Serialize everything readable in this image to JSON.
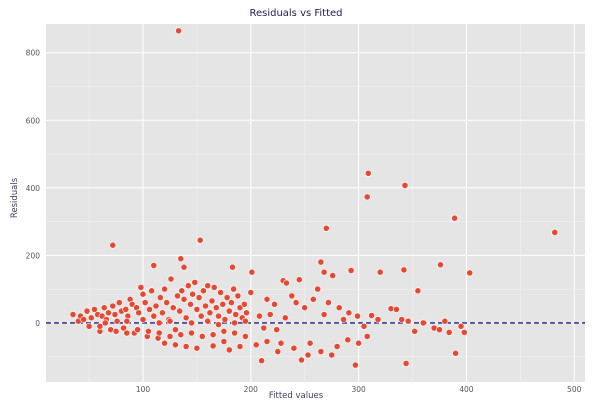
{
  "chart_data": {
    "type": "scatter",
    "title": "Residuals vs Fitted",
    "xlabel": "Fitted values",
    "ylabel": "Residuals",
    "xlim": [
      10,
      510
    ],
    "ylim": [
      -175,
      885
    ],
    "xticks": [
      100,
      200,
      300,
      400,
      500
    ],
    "yticks": [
      0,
      200,
      400,
      600,
      800
    ],
    "grid": true,
    "reference_line": {
      "y": 0,
      "style": "dashed",
      "color": "#1f1f8a"
    },
    "point_color": "#e24a33",
    "background_color": "#e5e5e5",
    "points": [
      [
        133,
        865
      ],
      [
        309,
        443
      ],
      [
        343,
        407
      ],
      [
        308,
        373
      ],
      [
        389,
        310
      ],
      [
        482,
        268
      ],
      [
        270,
        280
      ],
      [
        72,
        230
      ],
      [
        153,
        245
      ],
      [
        135,
        190
      ],
      [
        110,
        170
      ],
      [
        183,
        165
      ],
      [
        201,
        150
      ],
      [
        138,
        165
      ],
      [
        265,
        180
      ],
      [
        293,
        155
      ],
      [
        320,
        150
      ],
      [
        342,
        157
      ],
      [
        376,
        172
      ],
      [
        403,
        148
      ],
      [
        355,
        95
      ],
      [
        230,
        125
      ],
      [
        245,
        128
      ],
      [
        233,
        118
      ],
      [
        268,
        150
      ],
      [
        262,
        100
      ],
      [
        276,
        140
      ],
      [
        330,
        42
      ],
      [
        335,
        40
      ],
      [
        312,
        22
      ],
      [
        352,
        -25
      ],
      [
        370,
        -15
      ],
      [
        384,
        -28
      ],
      [
        398,
        -28
      ],
      [
        390,
        -90
      ],
      [
        344,
        -120
      ],
      [
        297,
        -125
      ],
      [
        210,
        -112
      ],
      [
        247,
        -110
      ],
      [
        253,
        -95
      ],
      [
        265,
        -85
      ],
      [
        275,
        -95
      ],
      [
        280,
        -70
      ],
      [
        290,
        -50
      ],
      [
        300,
        -60
      ],
      [
        308,
        -40
      ],
      [
        255,
        -60
      ],
      [
        240,
        -75
      ],
      [
        225,
        -85
      ],
      [
        228,
        -60
      ],
      [
        215,
        -55
      ],
      [
        205,
        -65
      ],
      [
        190,
        -70
      ],
      [
        180,
        -80
      ],
      [
        175,
        -55
      ],
      [
        165,
        -68
      ],
      [
        150,
        -75
      ],
      [
        140,
        -70
      ],
      [
        130,
        -65
      ],
      [
        120,
        -60
      ],
      [
        200,
        90
      ],
      [
        215,
        70
      ],
      [
        222,
        55
      ],
      [
        238,
        80
      ],
      [
        242,
        60
      ],
      [
        250,
        45
      ],
      [
        258,
        70
      ],
      [
        268,
        25
      ],
      [
        272,
        60
      ],
      [
        282,
        45
      ],
      [
        286,
        10
      ],
      [
        291,
        30
      ],
      [
        299,
        20
      ],
      [
        305,
        -10
      ],
      [
        318,
        10
      ],
      [
        340,
        10
      ],
      [
        346,
        5
      ],
      [
        360,
        0
      ],
      [
        375,
        -20
      ],
      [
        380,
        5
      ],
      [
        395,
        -10
      ],
      [
        35,
        25
      ],
      [
        40,
        5
      ],
      [
        42,
        20
      ],
      [
        45,
        10
      ],
      [
        48,
        35
      ],
      [
        50,
        -10
      ],
      [
        52,
        15
      ],
      [
        55,
        40
      ],
      [
        58,
        25
      ],
      [
        60,
        -25
      ],
      [
        62,
        20
      ],
      [
        64,
        45
      ],
      [
        66,
        10
      ],
      [
        68,
        30
      ],
      [
        70,
        -20
      ],
      [
        72,
        50
      ],
      [
        74,
        25
      ],
      [
        76,
        5
      ],
      [
        78,
        60
      ],
      [
        80,
        35
      ],
      [
        82,
        -15
      ],
      [
        84,
        40
      ],
      [
        86,
        20
      ],
      [
        88,
        70
      ],
      [
        90,
        55
      ],
      [
        92,
        -30
      ],
      [
        94,
        45
      ],
      [
        96,
        30
      ],
      [
        98,
        105
      ],
      [
        100,
        85
      ],
      [
        102,
        60
      ],
      [
        104,
        -40
      ],
      [
        106,
        40
      ],
      [
        108,
        95
      ],
      [
        110,
        20
      ],
      [
        112,
        50
      ],
      [
        114,
        -45
      ],
      [
        116,
        75
      ],
      [
        118,
        30
      ],
      [
        120,
        100
      ],
      [
        122,
        60
      ],
      [
        124,
        10
      ],
      [
        126,
        130
      ],
      [
        128,
        45
      ],
      [
        130,
        -20
      ],
      [
        132,
        80
      ],
      [
        134,
        35
      ],
      [
        136,
        95
      ],
      [
        138,
        70
      ],
      [
        140,
        15
      ],
      [
        142,
        110
      ],
      [
        144,
        55
      ],
      [
        146,
        85
      ],
      [
        148,
        120
      ],
      [
        150,
        40
      ],
      [
        152,
        75
      ],
      [
        154,
        20
      ],
      [
        156,
        95
      ],
      [
        158,
        50
      ],
      [
        160,
        110
      ],
      [
        162,
        30
      ],
      [
        164,
        65
      ],
      [
        166,
        105
      ],
      [
        168,
        45
      ],
      [
        170,
        20
      ],
      [
        172,
        90
      ],
      [
        174,
        55
      ],
      [
        176,
        10
      ],
      [
        178,
        75
      ],
      [
        180,
        35
      ],
      [
        182,
        60
      ],
      [
        184,
        100
      ],
      [
        186,
        25
      ],
      [
        188,
        80
      ],
      [
        190,
        45
      ],
      [
        192,
        15
      ],
      [
        194,
        55
      ],
      [
        196,
        30
      ],
      [
        60,
        -10
      ],
      [
        75,
        -25
      ],
      [
        85,
        -30
      ],
      [
        95,
        -20
      ],
      [
        105,
        -25
      ],
      [
        115,
        -30
      ],
      [
        125,
        -40
      ],
      [
        135,
        -35
      ],
      [
        145,
        -30
      ],
      [
        155,
        -40
      ],
      [
        165,
        -35
      ],
      [
        175,
        -25
      ],
      [
        185,
        -30
      ],
      [
        195,
        -40
      ],
      [
        65,
        0
      ],
      [
        85,
        5
      ],
      [
        100,
        10
      ],
      [
        115,
        0
      ],
      [
        125,
        5
      ],
      [
        145,
        0
      ],
      [
        160,
        5
      ],
      [
        170,
        -5
      ],
      [
        185,
        0
      ],
      [
        195,
        5
      ],
      [
        208,
        20
      ],
      [
        212,
        -15
      ],
      [
        218,
        25
      ],
      [
        224,
        -20
      ],
      [
        232,
        15
      ]
    ]
  }
}
